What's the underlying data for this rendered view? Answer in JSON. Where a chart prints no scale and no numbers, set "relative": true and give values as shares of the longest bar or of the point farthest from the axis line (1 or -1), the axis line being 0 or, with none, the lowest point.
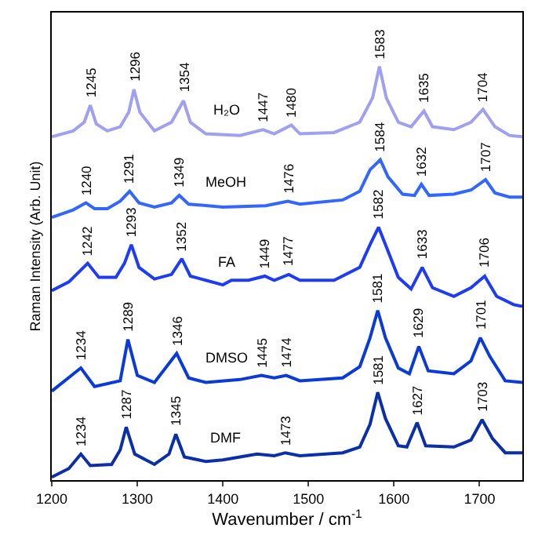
{
  "chart_data": {
    "type": "line",
    "relative": true,
    "xlabel": "Wavenumber / cm$^{-1}$",
    "ylabel": "Raman Intensity (Arb. Unit)",
    "xlim": [
      1200,
      1750
    ],
    "xticks": [
      1200,
      1300,
      1400,
      1500,
      1600,
      1700
    ],
    "legend": false,
    "marker": "none",
    "line_style": "solid",
    "series": [
      {
        "name": "H₂O",
        "color": "#a0a0f0",
        "x": [
          1200,
          1225,
          1238,
          1245,
          1252,
          1265,
          1280,
          1290,
          1296,
          1303,
          1320,
          1340,
          1354,
          1362,
          1380,
          1420,
          1447,
          1460,
          1480,
          1490,
          1530,
          1560,
          1575,
          1583,
          1591,
          1605,
          1620,
          1635,
          1645,
          1670,
          1690,
          1704,
          1718,
          1735,
          1750
        ],
        "values": [
          0.83,
          0.844,
          0.865,
          0.906,
          0.861,
          0.844,
          0.854,
          0.889,
          0.944,
          0.889,
          0.844,
          0.865,
          0.917,
          0.865,
          0.837,
          0.833,
          0.847,
          0.837,
          0.858,
          0.837,
          0.84,
          0.865,
          0.924,
          1.0,
          0.924,
          0.865,
          0.854,
          0.892,
          0.854,
          0.847,
          0.865,
          0.896,
          0.854,
          0.833,
          0.83
        ]
      },
      {
        "name": "MeOH",
        "color": "#3366ff",
        "x": [
          1200,
          1225,
          1240,
          1250,
          1265,
          1280,
          1291,
          1302,
          1320,
          1340,
          1349,
          1360,
          1400,
          1450,
          1476,
          1490,
          1540,
          1560,
          1572,
          1584,
          1593,
          1610,
          1624,
          1632,
          1641,
          1670,
          1690,
          1707,
          1718,
          1735,
          1750
        ],
        "values": [
          0.635,
          0.653,
          0.67,
          0.656,
          0.656,
          0.674,
          0.698,
          0.67,
          0.66,
          0.67,
          0.688,
          0.667,
          0.66,
          0.663,
          0.674,
          0.667,
          0.677,
          0.698,
          0.75,
          0.774,
          0.733,
          0.691,
          0.688,
          0.715,
          0.688,
          0.691,
          0.701,
          0.726,
          0.694,
          0.684,
          0.684
        ]
      },
      {
        "name": "FA",
        "color": "#1f3cf5",
        "x": [
          1200,
          1220,
          1242,
          1255,
          1275,
          1285,
          1293,
          1302,
          1320,
          1340,
          1352,
          1362,
          1380,
          1400,
          1410,
          1430,
          1449,
          1460,
          1477,
          1490,
          1530,
          1560,
          1572,
          1582,
          1592,
          1605,
          1620,
          1633,
          1645,
          1670,
          1690,
          1706,
          1720,
          1740,
          1750
        ],
        "values": [
          0.458,
          0.479,
          0.524,
          0.49,
          0.49,
          0.524,
          0.569,
          0.514,
          0.486,
          0.497,
          0.535,
          0.493,
          0.483,
          0.472,
          0.483,
          0.483,
          0.493,
          0.483,
          0.497,
          0.483,
          0.483,
          0.514,
          0.569,
          0.611,
          0.559,
          0.49,
          0.462,
          0.514,
          0.465,
          0.444,
          0.465,
          0.493,
          0.444,
          0.424,
          0.42
        ]
      },
      {
        "name": "DMSO",
        "color": "#0a3ad8",
        "x": [
          1200,
          1234,
          1250,
          1280,
          1289,
          1300,
          1320,
          1346,
          1360,
          1380,
          1420,
          1445,
          1460,
          1474,
          1490,
          1540,
          1560,
          1572,
          1581,
          1590,
          1605,
          1618,
          1629,
          1640,
          1670,
          1690,
          1701,
          1712,
          1730,
          1750
        ],
        "values": [
          0.215,
          0.271,
          0.226,
          0.24,
          0.34,
          0.253,
          0.236,
          0.306,
          0.247,
          0.236,
          0.243,
          0.253,
          0.247,
          0.253,
          0.24,
          0.247,
          0.274,
          0.344,
          0.41,
          0.344,
          0.271,
          0.257,
          0.323,
          0.264,
          0.257,
          0.288,
          0.344,
          0.299,
          0.24,
          0.236
        ]
      },
      {
        "name": "DMF",
        "color": "#0b2fa8",
        "x": [
          1200,
          1220,
          1234,
          1245,
          1270,
          1280,
          1287,
          1297,
          1320,
          1337,
          1345,
          1355,
          1380,
          1400,
          1420,
          1440,
          1460,
          1473,
          1490,
          1540,
          1560,
          1572,
          1581,
          1590,
          1605,
          1615,
          1627,
          1637,
          1670,
          1690,
          1703,
          1715,
          1730,
          1750
        ],
        "values": [
          0.007,
          0.028,
          0.063,
          0.035,
          0.038,
          0.073,
          0.128,
          0.063,
          0.038,
          0.063,
          0.111,
          0.056,
          0.045,
          0.049,
          0.056,
          0.063,
          0.059,
          0.066,
          0.059,
          0.066,
          0.08,
          0.135,
          0.212,
          0.149,
          0.083,
          0.08,
          0.139,
          0.083,
          0.08,
          0.097,
          0.146,
          0.101,
          0.066,
          0.066
        ]
      }
    ],
    "annotations": [
      {
        "text": "1245",
        "x": 1245,
        "y": 0.906
      },
      {
        "text": "1296",
        "x": 1296,
        "y": 0.944
      },
      {
        "text": "1354",
        "x": 1354,
        "y": 0.917
      },
      {
        "text": "1447",
        "x": 1447,
        "y": 0.847
      },
      {
        "text": "1480",
        "x": 1480,
        "y": 0.858
      },
      {
        "text": "1583",
        "x": 1583,
        "y": 1.0
      },
      {
        "text": "1635",
        "x": 1635,
        "y": 0.892
      },
      {
        "text": "1704",
        "x": 1704,
        "y": 0.896
      },
      {
        "text": "1240",
        "x": 1240,
        "y": 0.67
      },
      {
        "text": "1291",
        "x": 1291,
        "y": 0.698
      },
      {
        "text": "1349",
        "x": 1349,
        "y": 0.688
      },
      {
        "text": "1476",
        "x": 1476,
        "y": 0.674
      },
      {
        "text": "1584",
        "x": 1584,
        "y": 0.774
      },
      {
        "text": "1632",
        "x": 1632,
        "y": 0.715
      },
      {
        "text": "1707",
        "x": 1707,
        "y": 0.726
      },
      {
        "text": "1242",
        "x": 1242,
        "y": 0.524
      },
      {
        "text": "1293",
        "x": 1293,
        "y": 0.569
      },
      {
        "text": "1352",
        "x": 1352,
        "y": 0.535
      },
      {
        "text": "1449",
        "x": 1449,
        "y": 0.493
      },
      {
        "text": "1477",
        "x": 1477,
        "y": 0.497
      },
      {
        "text": "1582",
        "x": 1582,
        "y": 0.611
      },
      {
        "text": "1633",
        "x": 1633,
        "y": 0.514
      },
      {
        "text": "1706",
        "x": 1706,
        "y": 0.493
      },
      {
        "text": "1234",
        "x": 1234,
        "y": 0.271
      },
      {
        "text": "1289",
        "x": 1289,
        "y": 0.34
      },
      {
        "text": "1346",
        "x": 1346,
        "y": 0.306
      },
      {
        "text": "1445",
        "x": 1445,
        "y": 0.253
      },
      {
        "text": "1474",
        "x": 1474,
        "y": 0.253
      },
      {
        "text": "1581",
        "x": 1581,
        "y": 0.41
      },
      {
        "text": "1629",
        "x": 1629,
        "y": 0.323
      },
      {
        "text": "1701",
        "x": 1701,
        "y": 0.344
      },
      {
        "text": "1234",
        "x": 1234,
        "y": 0.063
      },
      {
        "text": "1287",
        "x": 1287,
        "y": 0.128
      },
      {
        "text": "1345",
        "x": 1345,
        "y": 0.111
      },
      {
        "text": "1473",
        "x": 1473,
        "y": 0.066
      },
      {
        "text": "1581",
        "x": 1581,
        "y": 0.212
      },
      {
        "text": "1627",
        "x": 1627,
        "y": 0.139
      },
      {
        "text": "1703",
        "x": 1703,
        "y": 0.146
      }
    ]
  }
}
